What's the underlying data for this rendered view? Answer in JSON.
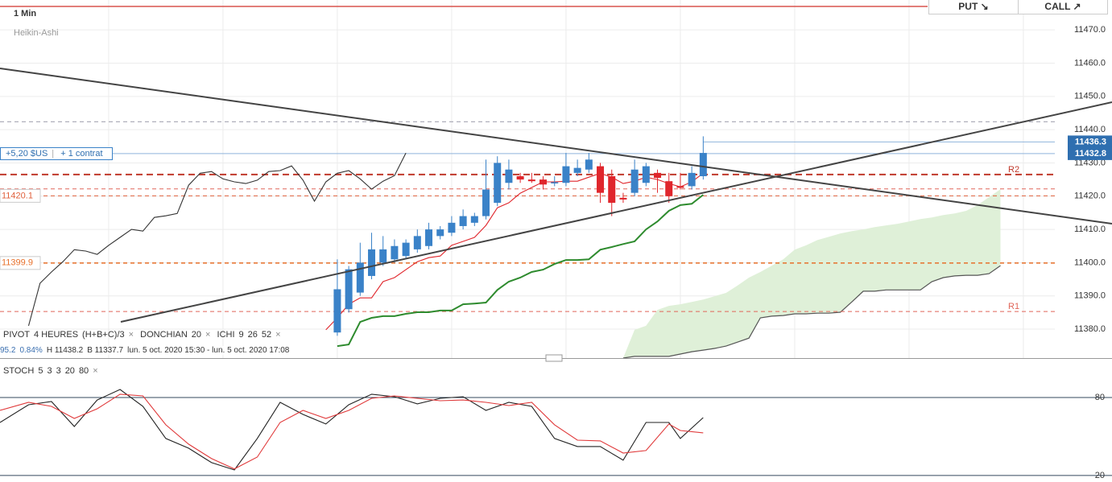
{
  "header": {
    "timeframe": "1 Min",
    "chart_style": "Heikin-Ashi"
  },
  "buttons": {
    "put": "PUT ↘",
    "call": "CALL ↗"
  },
  "position": {
    "pnl": "+5,20 $US",
    "size": "+ 1 contrat"
  },
  "indicators": {
    "pivot": [
      "PIVOT",
      "4 HEURES",
      "(H+B+C)/3"
    ],
    "donchian": [
      "DONCHIAN",
      "20"
    ],
    "ichimoku": [
      "ICHI",
      "9",
      "26",
      "52"
    ],
    "stoch": [
      "STOCH",
      "5",
      "3",
      "3",
      "20",
      "80"
    ]
  },
  "info": [
    "95.2",
    "0.84%",
    "H 11438.2",
    "B 11337.7",
    "lun. 5 oct. 2020 15:30 - lun. 5 oct. 2020 17:08"
  ],
  "chart_data": [
    {
      "type": "candlestick",
      "x": [
        0,
        1,
        2,
        3,
        4,
        5,
        6,
        7,
        8,
        9,
        10,
        11,
        12,
        13,
        14,
        15,
        16,
        17,
        18,
        19,
        20,
        21,
        22,
        23,
        24,
        25,
        26,
        27,
        28,
        29,
        30,
        31,
        32
      ],
      "open": [
        11379,
        11386,
        11391,
        11396,
        11400,
        11401,
        11402,
        11404,
        11405,
        11408,
        11409,
        11411,
        11412,
        11414,
        11418,
        11424,
        11426,
        11425,
        11425,
        11424,
        11424,
        11427,
        11428,
        11429,
        11426,
        11419.5,
        11421,
        11424,
        11427,
        11424.5,
        11423,
        11423,
        11426
      ],
      "high": [
        11401,
        11399,
        11406,
        11409,
        11408,
        11407,
        11407,
        11410,
        11412,
        11411,
        11414,
        11416,
        11415,
        11431,
        11432,
        11431,
        11427,
        11427,
        11426,
        11426,
        11433,
        11431,
        11433,
        11430,
        11428,
        11421,
        11431,
        11430,
        11428,
        11427,
        11427,
        11429,
        11438
      ],
      "low": [
        11378,
        11385,
        11390,
        11395,
        11399,
        11400,
        11401,
        11403,
        11404,
        11407,
        11408,
        11410,
        11411,
        11413,
        11417,
        11422,
        11424,
        11424,
        11422,
        11423,
        11423,
        11426,
        11427,
        11418,
        11414,
        11418,
        11420,
        11423,
        11421,
        11418,
        11422,
        11422,
        11425
      ],
      "close": [
        11392,
        11398,
        11400,
        11404,
        11404,
        11405,
        11406,
        11408,
        11410,
        11410,
        11412,
        11414,
        11414,
        11422,
        11430,
        11428,
        11425,
        11424.5,
        11423.5,
        11424.2,
        11429,
        11428.5,
        11431,
        11421,
        11418,
        11419,
        11428,
        11429,
        11425.5,
        11420,
        11422.5,
        11427,
        11433
      ],
      "up_color": "#3a82c8",
      "down_color": "#e0262c",
      "xlim": [
        -29.5,
        62.75
      ],
      "ylim": [
        11371.3,
        11479
      ],
      "xticks": [
        -20,
        -10,
        0,
        10,
        20,
        30,
        40,
        50,
        60
      ],
      "yticks": [
        {
          "value": 11380,
          "label": "11380.0"
        },
        {
          "value": 11390,
          "label": "11390.0"
        },
        {
          "value": 11400,
          "label": "11400.0"
        },
        {
          "value": 11410,
          "label": "11410.0"
        },
        {
          "value": 11420,
          "label": "11420.0"
        },
        {
          "value": 11430,
          "label": "11430.0"
        },
        {
          "value": 11440,
          "label": "11440.0"
        },
        {
          "value": 11450,
          "label": "11450.0"
        },
        {
          "value": 11460,
          "label": "11460.0"
        },
        {
          "value": 11470,
          "label": "11470.0"
        }
      ],
      "grid": true,
      "series": [
        {
          "color": "#333333",
          "x": [
            -27,
            -26,
            -25,
            -24,
            -23,
            -22,
            -21,
            -20,
            -19,
            -18,
            -17,
            -16,
            -15,
            -14,
            -13,
            -12,
            -11,
            -10,
            -9,
            -8,
            -7,
            -6,
            -5,
            -4,
            -3,
            -2,
            -1,
            0,
            1,
            2,
            3,
            4,
            5,
            6
          ],
          "values": [
            11381.0,
            11393.8,
            11397.2,
            11400.3,
            11403.9,
            11403.5,
            11402.5,
            11405.2,
            11407.6,
            11410.0,
            11409.5,
            11413.6,
            11414.1,
            11414.8,
            11423.3,
            11426.9,
            11427.4,
            11425.2,
            11424.3,
            11423.8,
            11424.8,
            11427.4,
            11427.7,
            11429.1,
            11424.8,
            11418.5,
            11424.3,
            11426.9,
            11427.7,
            11425.2,
            11422.1,
            11424.5,
            11426.2,
            11433.0
          ]
        },
        {
          "color": "#e0262c",
          "x": [
            -1,
            0,
            1,
            2,
            3,
            4,
            5,
            6,
            7,
            8,
            9,
            10,
            11,
            12,
            13,
            14,
            15,
            16,
            17,
            18,
            19,
            20,
            21,
            22,
            23,
            24,
            25,
            26,
            27,
            28,
            29,
            30,
            31,
            32
          ],
          "values": [
            11379.8,
            11383.4,
            11387.5,
            11389.4,
            11389.4,
            11394.3,
            11395.5,
            11397.9,
            11400.3,
            11401.5,
            11402.0,
            11405.2,
            11406.4,
            11407.6,
            11411.2,
            11416.5,
            11418.0,
            11420.9,
            11422.6,
            11424.3,
            11424.3,
            11424.5,
            11424.5,
            11425.7,
            11426.9,
            11425.7,
            11423.8,
            11424.5,
            11425.7,
            11425.0,
            11423.8,
            11422.8,
            11424.3,
            11426.9
          ]
        },
        {
          "color": "#2e8b2e",
          "x": [
            0,
            1,
            2,
            3,
            4,
            5,
            6,
            7,
            8,
            9,
            10,
            11,
            12,
            13,
            14,
            15,
            16,
            17,
            18,
            19,
            20,
            21,
            22,
            23,
            24,
            25,
            26,
            27,
            28,
            29,
            30,
            31,
            32
          ],
          "values": [
            11374.9,
            11375.4,
            11382.2,
            11383.4,
            11383.9,
            11383.9,
            11384.6,
            11385.1,
            11385.1,
            11385.6,
            11385.6,
            11387.5,
            11387.7,
            11388.0,
            11391.8,
            11394.3,
            11395.5,
            11397.2,
            11397.9,
            11399.6,
            11400.8,
            11400.8,
            11401.0,
            11403.9,
            11404.7,
            11405.6,
            11406.4,
            11410.0,
            11412.4,
            11415.6,
            11417.3,
            11417.7,
            11420.4
          ]
        }
      ],
      "cloud": {
        "color": "#dff0d8",
        "line_color": "#555555",
        "x": [
          25,
          26,
          27,
          28,
          29,
          30,
          31,
          32,
          33,
          34,
          35,
          36,
          37,
          38,
          39,
          40,
          41,
          42,
          43,
          44,
          45,
          46,
          47,
          48,
          49,
          50,
          51,
          52,
          53,
          54,
          55,
          56,
          57,
          58
        ],
        "upper": [
          11371.3,
          11379.8,
          11381.0,
          11385.8,
          11387.0,
          11387.5,
          11388.2,
          11388.9,
          11389.9,
          11390.9,
          11393.1,
          11395.5,
          11397.2,
          11399.1,
          11401.0,
          11403.9,
          11405.2,
          11406.8,
          11407.8,
          11408.8,
          11409.5,
          11410.0,
          11410.7,
          11411.2,
          11411.7,
          11412.4,
          11413.1,
          11413.6,
          11414.3,
          11414.8,
          11415.6,
          11417.3,
          11419.7,
          11422.1
        ],
        "lower": [
          11371.3,
          11371.8,
          11371.8,
          11371.8,
          11371.8,
          11372.5,
          11373.2,
          11373.7,
          11374.2,
          11374.9,
          11376.1,
          11377.3,
          11383.4,
          11383.9,
          11384.1,
          11384.6,
          11384.6,
          11384.8,
          11384.8,
          11385.1,
          11388.2,
          11391.4,
          11391.4,
          11391.8,
          11391.8,
          11391.8,
          11391.8,
          11394.3,
          11395.5,
          11396.0,
          11396.2,
          11396.2,
          11396.7,
          11399.1
        ]
      },
      "levels": [
        {
          "value": 11442.4,
          "color": "#9a9aa8",
          "width": 1
        },
        {
          "value": 11426.5,
          "label": "R2",
          "color": "#c0392b",
          "width": 2
        },
        {
          "value": 11422.2,
          "color": "#e0665a",
          "width": 1
        },
        {
          "value": 11420.1,
          "tag": "left",
          "color": "#e0603c",
          "width": 1
        },
        {
          "value": 11399.9,
          "tag": "left",
          "color": "#e8702a",
          "width": 1.5
        },
        {
          "value": 11385.3,
          "label": "R1",
          "color": "#e0665a",
          "width": 1
        }
      ],
      "price_tags": [
        11436.3,
        11432.8
      ],
      "tag_color": "#2f6fb0"
    },
    {
      "type": "line",
      "x": [
        -29.5,
        -27,
        -25,
        -23,
        -21,
        -19,
        -17,
        -15,
        -13,
        -11,
        -9,
        -7,
        -5,
        -3,
        -1,
        1,
        3,
        5,
        7,
        9,
        11,
        13,
        15,
        17,
        19,
        21,
        23,
        25,
        27,
        29,
        30,
        32
      ],
      "xlim": [
        -29.5,
        62.75
      ],
      "ylim": [
        15,
        109.7
      ],
      "yticks": [
        20,
        80
      ],
      "series": [
        {
          "color": "#222222",
          "values": [
            60.8,
            74.4,
            76.9,
            57.7,
            78.1,
            86.2,
            73.2,
            48.5,
            41.0,
            29.9,
            24.3,
            48.5,
            76.3,
            67.0,
            59.6,
            74.4,
            82.5,
            80.6,
            75.1,
            79.4,
            80.6,
            70.1,
            76.3,
            73.2,
            48.5,
            42.3,
            42.3,
            31.8,
            60.8,
            60.8,
            48.5,
            64.5
          ]
        },
        {
          "color": "#e0393a",
          "values": [
            70.1,
            76.3,
            73.2,
            63.9,
            71.3,
            82.5,
            81.2,
            59.0,
            44.1,
            33.0,
            25.0,
            34.2,
            60.8,
            70.1,
            63.9,
            70.1,
            79.4,
            81.2,
            79.4,
            77.5,
            78.1,
            76.3,
            73.8,
            76.3,
            59.0,
            47.2,
            46.6,
            37.3,
            39.2,
            59.6,
            54.6,
            52.8
          ]
        }
      ]
    }
  ]
}
